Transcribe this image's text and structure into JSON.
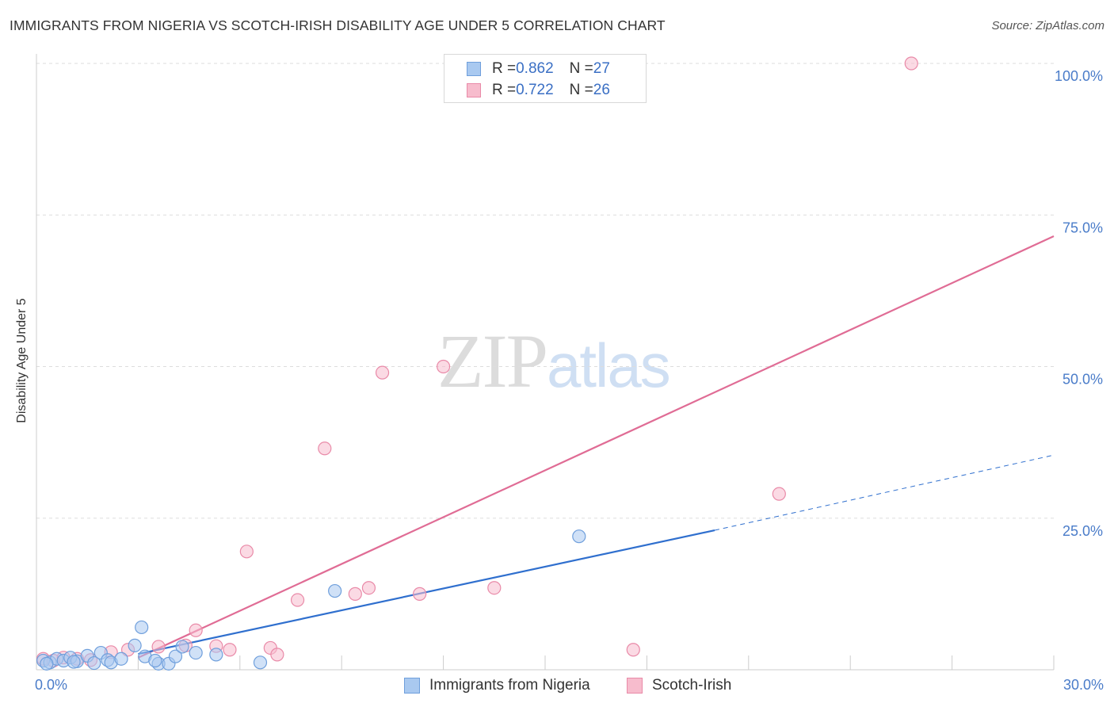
{
  "header": {
    "title": "IMMIGRANTS FROM NIGERIA VS SCOTCH-IRISH DISABILITY AGE UNDER 5 CORRELATION CHART",
    "source": "Source: ZipAtlas.com"
  },
  "watermark": {
    "zip": "ZIP",
    "atlas": "atlas"
  },
  "legend_top": {
    "rows": [
      {
        "r_label": "R = ",
        "r_value": "0.862",
        "n_label": "N = ",
        "n_value": "27"
      },
      {
        "r_label": "R = ",
        "r_value": "0.722",
        "n_label": "N = ",
        "n_value": "26"
      }
    ]
  },
  "legend_bottom": {
    "items": [
      {
        "label": "Immigrants from Nigeria"
      },
      {
        "label": "Scotch-Irish"
      }
    ]
  },
  "colors": {
    "nigeria_fill": "#a9c9f0",
    "nigeria_stroke": "#6f9fdc",
    "nigeria_line": "#2f6fce",
    "scotch_fill": "#f7bccd",
    "scotch_stroke": "#e98aa8",
    "scotch_line": "#e06c95",
    "grid": "#dddddd",
    "tick_label": "#4a7cc9"
  },
  "chart_data": {
    "type": "scatter",
    "title": "IMMIGRANTS FROM NIGERIA VS SCOTCH-IRISH DISABILITY AGE UNDER 5 CORRELATION CHART",
    "xlabel": "",
    "ylabel": "Disability Age Under 5",
    "xlim": [
      0,
      30
    ],
    "ylim": [
      0,
      100
    ],
    "x_tick_labels": [
      {
        "value": 0,
        "label": "0.0%"
      },
      {
        "value": 30,
        "label": "30.0%"
      }
    ],
    "y_tick_labels": [
      {
        "value": 25,
        "label": "25.0%"
      },
      {
        "value": 50,
        "label": "50.0%"
      },
      {
        "value": 75,
        "label": "75.0%"
      },
      {
        "value": 100,
        "label": "100.0%"
      }
    ],
    "y_grid": [
      25,
      50,
      75,
      100
    ],
    "grid": true,
    "legend_placement": "top-center",
    "series": [
      {
        "name": "Immigrants from Nigeria",
        "r": 0.862,
        "n": 27,
        "points": [
          [
            0.2,
            1.5
          ],
          [
            0.4,
            1.2
          ],
          [
            0.6,
            1.8
          ],
          [
            0.8,
            1.5
          ],
          [
            1.0,
            2.0
          ],
          [
            1.2,
            1.4
          ],
          [
            1.5,
            2.3
          ],
          [
            1.7,
            1.1
          ],
          [
            1.9,
            2.8
          ],
          [
            2.1,
            1.6
          ],
          [
            2.2,
            1.2
          ],
          [
            2.9,
            4.0
          ],
          [
            3.1,
            7.0
          ],
          [
            3.2,
            2.2
          ],
          [
            3.6,
            1.0
          ],
          [
            3.9,
            1.0
          ],
          [
            4.1,
            2.2
          ],
          [
            4.3,
            3.8
          ],
          [
            4.7,
            2.8
          ],
          [
            5.3,
            2.5
          ],
          [
            6.6,
            1.2
          ],
          [
            8.8,
            13.0
          ],
          [
            16.0,
            22.0
          ],
          [
            0.3,
            1.0
          ],
          [
            1.1,
            1.3
          ],
          [
            2.5,
            1.8
          ],
          [
            3.5,
            1.5
          ]
        ],
        "trend": {
          "x0": 3.0,
          "y0": 2.6,
          "x1": 20.0,
          "y1": 23.0
        },
        "trend_extension": {
          "x0": 20.0,
          "y0": 23.0,
          "x1": 30.0,
          "y1": 35.4
        }
      },
      {
        "name": "Scotch-Irish",
        "r": 0.722,
        "n": 26,
        "points": [
          [
            0.2,
            1.8
          ],
          [
            0.5,
            1.5
          ],
          [
            0.8,
            2.0
          ],
          [
            1.2,
            1.8
          ],
          [
            1.6,
            1.6
          ],
          [
            2.2,
            2.9
          ],
          [
            2.7,
            3.3
          ],
          [
            3.6,
            3.8
          ],
          [
            4.4,
            4.0
          ],
          [
            4.7,
            6.5
          ],
          [
            5.3,
            3.9
          ],
          [
            5.7,
            3.3
          ],
          [
            6.2,
            19.5
          ],
          [
            6.9,
            3.6
          ],
          [
            7.1,
            2.5
          ],
          [
            7.7,
            11.5
          ],
          [
            8.5,
            36.5
          ],
          [
            9.4,
            12.5
          ],
          [
            9.8,
            13.5
          ],
          [
            10.2,
            49.0
          ],
          [
            11.3,
            12.5
          ],
          [
            12.0,
            50.0
          ],
          [
            13.5,
            13.5
          ],
          [
            17.6,
            3.3
          ],
          [
            21.9,
            29.0
          ],
          [
            25.8,
            100.0
          ]
        ],
        "trend": {
          "x0": 3.0,
          "y0": 2.0,
          "x1": 30.0,
          "y1": 71.5
        }
      }
    ]
  }
}
